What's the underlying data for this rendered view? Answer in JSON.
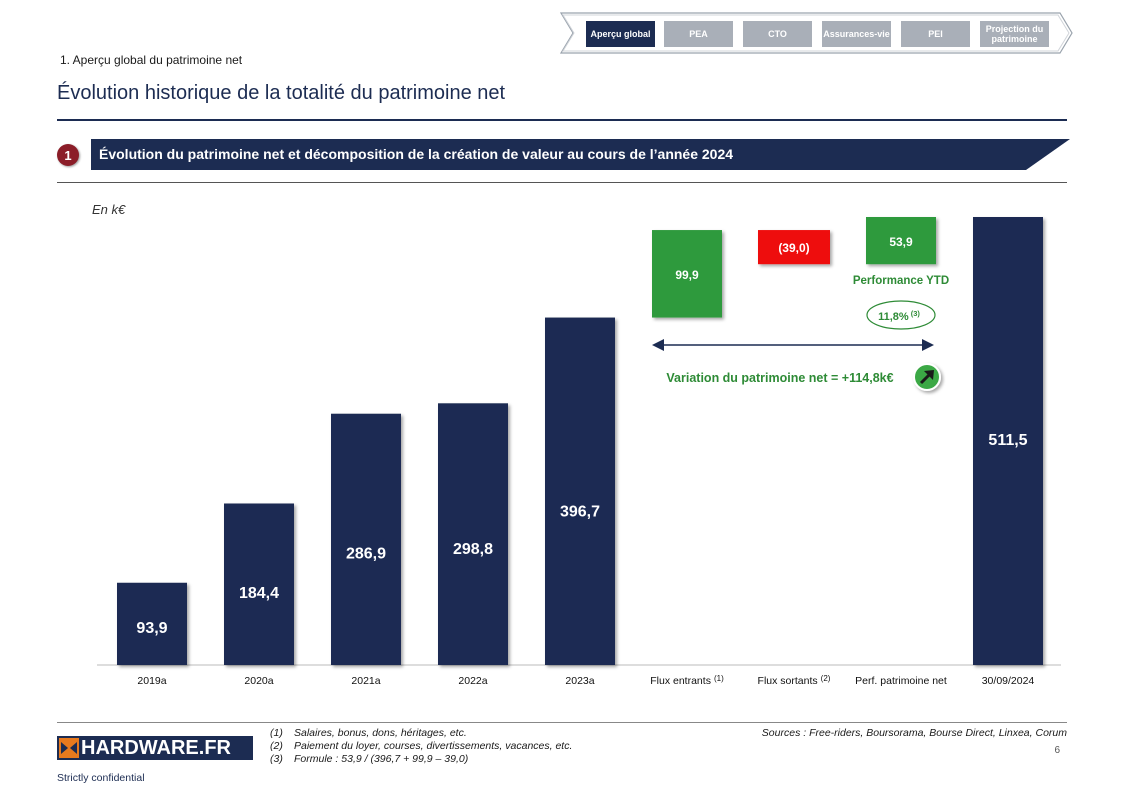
{
  "nav": {
    "tabs": [
      {
        "label": "Aperçu global",
        "active": true
      },
      {
        "label": "PEA",
        "active": false
      },
      {
        "label": "CTO",
        "active": false
      },
      {
        "label": "Assurances-vie",
        "active": false
      },
      {
        "label": "PEI",
        "active": false
      },
      {
        "label": "Projection du patrimoine",
        "active": false
      }
    ]
  },
  "breadcrumb": "1. Aperçu global du patrimoine net",
  "title": "Évolution historique de la totalité du patrimoine net",
  "section": {
    "number": "1",
    "label": "Évolution du patrimoine net et décomposition de la création de valeur au cours de l’année 2024"
  },
  "unit": "En k€",
  "chart_data": {
    "type": "bar",
    "subtype": "waterfall",
    "categories": [
      "2019a",
      "2020a",
      "2021a",
      "2022a",
      "2023a",
      "Flux entrants",
      "Flux sortants",
      "Perf. patrimoine net",
      "30/09/2024"
    ],
    "category_notes": [
      "",
      "",
      "",
      "",
      "",
      "(1)",
      "(2)",
      "",
      ""
    ],
    "bars": [
      {
        "kind": "total",
        "start": 0,
        "end": 93.9,
        "label": "93,9"
      },
      {
        "kind": "total",
        "start": 0,
        "end": 184.4,
        "label": "184,4"
      },
      {
        "kind": "total",
        "start": 0,
        "end": 286.9,
        "label": "286,9"
      },
      {
        "kind": "total",
        "start": 0,
        "end": 298.8,
        "label": "298,8"
      },
      {
        "kind": "total",
        "start": 0,
        "end": 396.7,
        "label": "396,7"
      },
      {
        "kind": "increase",
        "start": 396.7,
        "end": 496.6,
        "label": "99,9"
      },
      {
        "kind": "decrease",
        "start": 457.6,
        "end": 496.6,
        "label": "(39,0)"
      },
      {
        "kind": "increase",
        "start": 457.6,
        "end": 511.5,
        "label": "53,9"
      },
      {
        "kind": "total",
        "start": 0,
        "end": 511.5,
        "label": "511,5"
      }
    ],
    "ylim": [
      0,
      520
    ],
    "colors": {
      "total": "#1c2c52",
      "increase": "#2e9a3e",
      "decrease": "#ee1111",
      "annotation": "#2e8b36"
    },
    "annotations": {
      "performance_label": "Performance YTD",
      "performance_pct": "11,8%",
      "performance_pct_note": "(3)",
      "variation_label": "Variation du patrimoine net = +114,8k€",
      "variation_icon": "arrow-up-right-icon"
    }
  },
  "footnotes": [
    {
      "num": "(1)",
      "text": "Salaires, bonus, dons, héritages, etc."
    },
    {
      "num": "(2)",
      "text": "Paiement du loyer, courses, divertissements, vacances, etc."
    },
    {
      "num": "(3)",
      "text": "Formule : 53,9 / (396,7 + 99,9 – 39,0)"
    }
  ],
  "sources": "Sources : Free-riders, Boursorama, Bourse Direct, Linxea, Corum",
  "page_number": "6",
  "logo_text": "HARDWARE.FR",
  "confidential": "Strictly confidential"
}
